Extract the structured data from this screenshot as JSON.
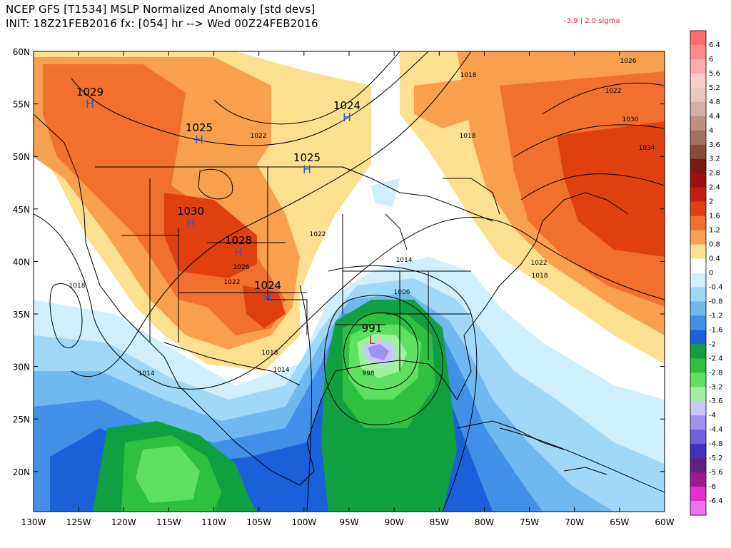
{
  "header": {
    "line1": "NCEP GFS [T1534] MSLP Normalized Anomaly [std devs]",
    "line2": "INIT: 18Z21FEB2016 fx: [054] hr --> Wed 00Z24FEB2016",
    "sigma_note": "-3.9 | 2.0 sigma"
  },
  "lat_labels": [
    "60N",
    "55N",
    "50N",
    "45N",
    "40N",
    "35N",
    "30N",
    "25N",
    "20N"
  ],
  "lon_labels": [
    "130W",
    "125W",
    "120W",
    "115W",
    "110W",
    "105W",
    "100W",
    "95W",
    "90W",
    "85W",
    "80W",
    "75W",
    "70W",
    "65W",
    "60W"
  ],
  "pressure_centers": [
    {
      "value": "1029",
      "symbol": "H"
    },
    {
      "value": "1025",
      "symbol": "H"
    },
    {
      "value": "1024",
      "symbol": "H"
    },
    {
      "value": "1025",
      "symbol": "H"
    },
    {
      "value": "1030",
      "symbol": "H"
    },
    {
      "value": "1028",
      "symbol": "H"
    },
    {
      "value": "1024",
      "symbol": "H"
    },
    {
      "value": "991",
      "symbol": "L"
    }
  ],
  "isobar_labels": [
    "1018",
    "1018",
    "1022",
    "1022",
    "1018",
    "1026",
    "1030",
    "1034",
    "1022",
    "1026",
    "1022",
    "1014",
    "1022",
    "1018",
    "1018",
    "1014",
    "1006",
    "1014",
    "998"
  ],
  "colorbar": {
    "labels": [
      "6.4",
      "6",
      "5.6",
      "5.2",
      "4.8",
      "4.4",
      "4",
      "3.6",
      "3.2",
      "2.8",
      "2.4",
      "2",
      "1.6",
      "1.2",
      "0.8",
      "0.4",
      "0",
      "-0.4",
      "-0.8",
      "-1.2",
      "-1.6",
      "-2",
      "-2.4",
      "-2.8",
      "-3.2",
      "-3.6",
      "-4",
      "-4.4",
      "-4.8",
      "-5.2",
      "-5.6",
      "-6",
      "-6.4"
    ],
    "colors": [
      "#ff6c6c",
      "#ff8a8a",
      "#ffaaaa",
      "#ffcccc",
      "#e8c8c0",
      "#d6b0a4",
      "#c09080",
      "#a87060",
      "#8a4a3a",
      "#7a1a10",
      "#a01010",
      "#c42010",
      "#e04010",
      "#f07030",
      "#f8a050",
      "#fce090",
      "#ffffff",
      "#cfefff",
      "#9fd8f8",
      "#6fb8f0",
      "#4090e8",
      "#1a60d8",
      "#10a040",
      "#30c040",
      "#60e060",
      "#a0f0a0",
      "#c8c8ff",
      "#a090f0",
      "#7060e0",
      "#4030c0",
      "#602080",
      "#a01890",
      "#e030d0",
      "#f070f0"
    ]
  },
  "colors": {
    "sigma_note": "#e8292a",
    "high_symbol": "#2a5ad0",
    "low_symbol": "#e02020"
  }
}
